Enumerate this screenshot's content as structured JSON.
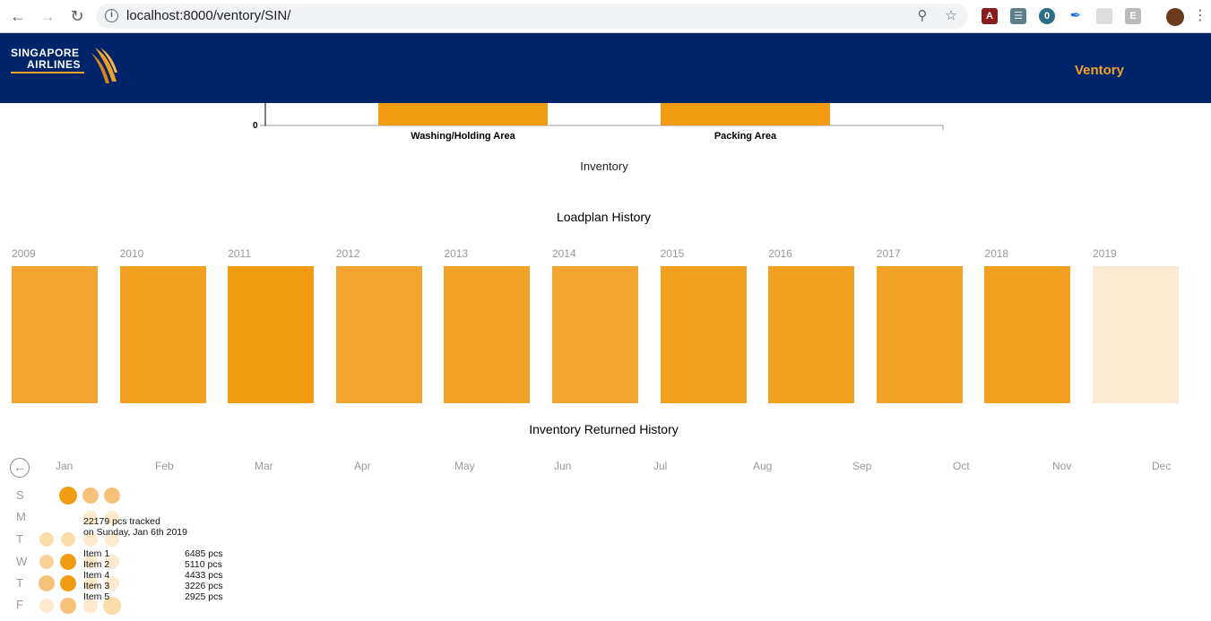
{
  "browser": {
    "url": "localhost:8000/ventory/SIN/",
    "ext_badge": "0",
    "ext_e": "E"
  },
  "header": {
    "logo_line1": "SINGAPORE",
    "logo_line2": "AIRLINES",
    "brand": "Ventory"
  },
  "inventory_chart": {
    "zero_label": "0",
    "categories": [
      "Washing/Holding Area",
      "Packing Area"
    ],
    "caption": "Inventory"
  },
  "loadplan": {
    "title": "Loadplan History",
    "years": [
      "2009",
      "2010",
      "2011",
      "2012",
      "2013",
      "2014",
      "2015",
      "2016",
      "2017",
      "2018",
      "2019"
    ],
    "colors": [
      "#f2a430",
      "#f2a020",
      "#f29c14",
      "#f2a430",
      "#f2a227",
      "#f2a430",
      "#f2a020",
      "#f2a020",
      "#f2a227",
      "#f2a020",
      "#fbebd3"
    ]
  },
  "returned": {
    "title": "Inventory Returned History",
    "back_icon": "back-arrow-icon",
    "months": [
      "Jan",
      "Feb",
      "Mar",
      "Apr",
      "May",
      "Jun",
      "Jul",
      "Aug",
      "Sep",
      "Oct",
      "Nov",
      "Dec"
    ],
    "days": [
      "S",
      "M",
      "T",
      "W",
      "T",
      "F"
    ],
    "tooltip": {
      "line1": "22179 pcs tracked",
      "line2": "on Sunday, Jan 6th 2019",
      "items": [
        {
          "name": "Item 1",
          "value": "6485 pcs"
        },
        {
          "name": "Item 2",
          "value": "5110 pcs"
        },
        {
          "name": "Item 4",
          "value": "4433 pcs"
        },
        {
          "name": "Item 3",
          "value": "3226 pcs"
        },
        {
          "name": "Item 5",
          "value": "2925 pcs"
        }
      ]
    }
  }
}
